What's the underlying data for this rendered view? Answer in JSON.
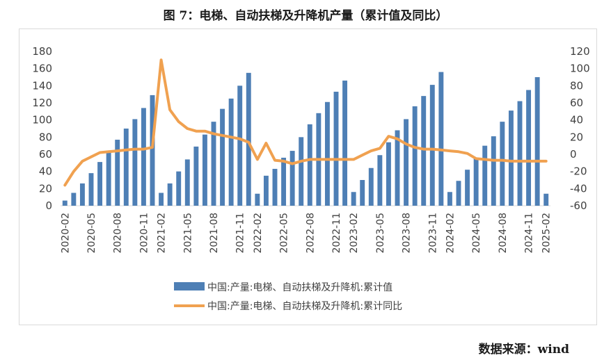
{
  "header": {
    "title": "图 7：电梯、自动扶梯及升降机产量（累计值及同比）"
  },
  "footer": {
    "source": "数据来源：wind"
  },
  "colors": {
    "bar": "#4e7fb5",
    "line": "#f0a150",
    "axis": "#d9d9d9"
  },
  "chart_data": {
    "type": "bar",
    "grid": false,
    "legend_position": "bottom",
    "x_tick_labels": [
      "2020-02",
      "2020-05",
      "2020-08",
      "2020-11",
      "2021-02",
      "2021-05",
      "2021-08",
      "2021-11",
      "2022-02",
      "2022-05",
      "2022-08",
      "2022-11",
      "2023-02",
      "2023-05",
      "2023-08",
      "2023-11",
      "2024-02",
      "2024-05",
      "2024-08",
      "2024-11",
      "2025-02"
    ],
    "y_left": {
      "min": 0,
      "max": 180,
      "ticks": [
        0,
        20,
        40,
        60,
        80,
        100,
        120,
        140,
        160,
        180
      ]
    },
    "y_right": {
      "min": -60,
      "max": 120,
      "ticks": [
        -60,
        -40,
        -20,
        0,
        20,
        40,
        60,
        80,
        100,
        120
      ]
    },
    "categories": [
      "2020-02",
      "2020-03",
      "2020-04",
      "2020-05",
      "2020-06",
      "2020-07",
      "2020-08",
      "2020-09",
      "2020-10",
      "2020-11",
      "2020-12",
      "2021-02",
      "2021-03",
      "2021-04",
      "2021-05",
      "2021-06",
      "2021-07",
      "2021-08",
      "2021-09",
      "2021-10",
      "2021-11",
      "2021-12",
      "2022-02",
      "2022-03",
      "2022-04",
      "2022-05",
      "2022-06",
      "2022-07",
      "2022-08",
      "2022-09",
      "2022-10",
      "2022-11",
      "2022-12",
      "2023-02",
      "2023-03",
      "2023-04",
      "2023-05",
      "2023-06",
      "2023-07",
      "2023-08",
      "2023-09",
      "2023-10",
      "2023-11",
      "2023-12",
      "2024-02",
      "2024-03",
      "2024-04",
      "2024-05",
      "2024-06",
      "2024-07",
      "2024-08",
      "2024-09",
      "2024-10",
      "2024-11",
      "2024-12",
      "2025-02"
    ],
    "series": [
      {
        "name": "中国:产量:电梯、自动扶梯及升降机:累计值",
        "type": "bar",
        "axis": "left",
        "values": [
          6,
          15,
          26,
          38,
          51,
          63,
          77,
          90,
          101,
          114,
          129,
          15,
          26,
          40,
          54,
          69,
          83,
          98,
          113,
          125,
          140,
          155,
          14,
          35,
          43,
          56,
          64,
          80,
          95,
          108,
          121,
          133,
          146,
          16,
          30,
          44,
          59,
          74,
          88,
          101,
          116,
          128,
          141,
          156,
          16,
          29,
          42,
          55,
          70,
          81,
          98,
          111,
          122,
          135,
          150,
          14
        ]
      },
      {
        "name": "中国:产量:电梯、自动扶梯及升降机:累计同比",
        "type": "line",
        "axis": "right",
        "values": [
          -36,
          -20,
          -8,
          -3,
          2,
          3,
          4,
          5,
          6,
          6,
          8,
          110,
          52,
          38,
          30,
          27,
          27,
          24,
          22,
          20,
          18,
          14,
          -6,
          13,
          -7,
          -8,
          -11,
          -8,
          -6,
          -6,
          -6,
          -6,
          -6,
          -6,
          -1,
          4,
          7,
          21,
          18,
          12,
          8,
          6,
          6,
          5,
          4,
          3,
          1,
          -5,
          -6,
          -7,
          -7,
          -8,
          -8,
          -8,
          -8,
          -8
        ]
      }
    ]
  }
}
